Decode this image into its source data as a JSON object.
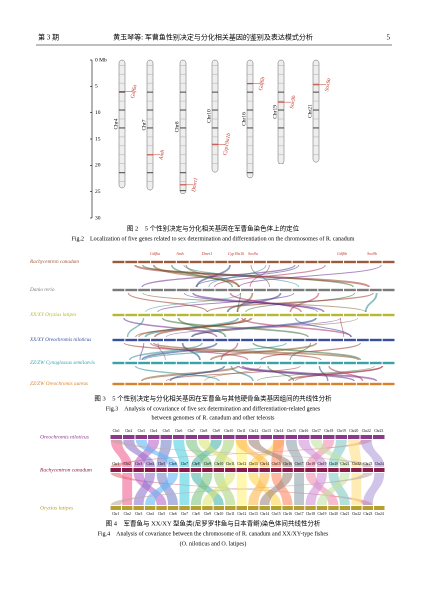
{
  "header": {
    "issue": "第 3 期",
    "running_title": "黄玉琴等: 军曹鱼性别决定与分化相关基因的鉴别及表达模式分析",
    "page": "5"
  },
  "figure2": {
    "scale_ticks": [
      {
        "value": 0,
        "label": "0 Mb"
      },
      5,
      10,
      15,
      20,
      25,
      30
    ],
    "chromosomes": [
      {
        "name": "Chr4",
        "length": 24.3,
        "genes": [
          {
            "name": "Gdf6a",
            "position": 6
          }
        ]
      },
      {
        "name": "Chr7",
        "length": 24.7,
        "genes": [
          {
            "name": "Amh",
            "position": 18
          }
        ]
      },
      {
        "name": "Chr8",
        "length": 25.4,
        "genes": [
          {
            "name": "Dmrt1",
            "position": 23.7
          }
        ]
      },
      {
        "name": "Chr10",
        "length": 21.3,
        "genes": [
          {
            "name": "Cyp19a1b",
            "position": 16
          }
        ]
      },
      {
        "name": "Chr16",
        "length": 22.4,
        "genes": [
          {
            "name": "Gdf6b",
            "position": 4.5
          }
        ]
      },
      {
        "name": "Chr19",
        "length": 19.7,
        "genes": [
          {
            "name": "Sox9b",
            "position": 8
          }
        ]
      },
      {
        "name": "Chr21",
        "length": 19.4,
        "genes": [
          {
            "name": "Sox9a",
            "position": 4.7
          }
        ]
      }
    ],
    "caption_cn": "图 2　5 个性别决定与分化相关基因在军曹鱼染色体上的定位",
    "caption_en": "Fig.2　Localization of five genes related to sex determination and differentiation on the chromosomes of R. canadum"
  },
  "figure3": {
    "genes": [
      "Gdf6a",
      "Amh",
      "Dmrt1",
      "Cyp19a1b",
      "Sox9a",
      "Gdf6b",
      "Sox9b"
    ],
    "rows": [
      {
        "label": "Rachycentron canadum",
        "color": "#9c5a3c"
      },
      {
        "label": "Danio rerio",
        "color": "#7a7a7a"
      },
      {
        "label": "XX/XY Oryzias latipes",
        "color": "#b5b832"
      },
      {
        "label": "XX/XY Oreochromis niloticus",
        "color": "#3a4f9c"
      },
      {
        "label": "ZZ/ZW Cynoglossus semilaevis",
        "color": "#3aa3a8"
      },
      {
        "label": "ZZ/ZW Oreochromis aureus",
        "color": "#d9822b"
      }
    ],
    "caption_cn": "图 3　5 个性别决定与分化相关基因在军曹鱼与其他硬骨鱼类基因组间的共线性分析",
    "caption_en": [
      "Fig.3　Analysis of covariance of five sex determination and differentiation-related genes",
      "between genomes of R. canadum and other teleosts"
    ]
  },
  "figure4": {
    "rows": [
      {
        "label": "Oreochromis niloticus",
        "color": "#8b3a8b",
        "chromosomes": [
          "Chr1",
          "Chr2",
          "Chr3",
          "Chr4",
          "Chr5",
          "Chr6",
          "Chr7",
          "Chr8",
          "Chr9",
          "Chr10",
          "Chr11",
          "Chr12",
          "Chr13",
          "Chr14",
          "Chr15",
          "Chr16",
          "Chr17",
          "Chr18",
          "Chr19",
          "Chr20",
          "Chr22",
          "Chr23"
        ]
      },
      {
        "label": "Rachycentron canadum",
        "color": "#8b1a4a",
        "chromosomes": [
          "Chr1",
          "Chr2",
          "Chr3",
          "Chr4",
          "Chr5",
          "Chr6",
          "Chr7",
          "Chr8",
          "Chr9",
          "Chr10",
          "Chr11",
          "Chr12",
          "Chr13",
          "Chr14",
          "Chr15",
          "Chr16",
          "Chr17",
          "Chr18",
          "Chr19",
          "Chr20",
          "Chr21",
          "Chr22",
          "Chr23",
          "Chr24"
        ]
      },
      {
        "label": "Oryzias latipes",
        "color": "#b5a032",
        "chromosomes": [
          "Chr1",
          "Chr2",
          "Chr3",
          "Chr4",
          "Chr5",
          "Chr6",
          "Chr7",
          "Chr8",
          "Chr9",
          "Chr10",
          "Chr11",
          "Chr12",
          "Chr13",
          "Chr14",
          "Chr15",
          "Chr16",
          "Chr17",
          "Chr18",
          "Chr19",
          "Chr20",
          "Chr21",
          "Chr22",
          "Chr23",
          "Chr24"
        ]
      }
    ],
    "caption_cn": "图 4　军曹鱼与 XX/XY 型鱼类(尼罗罗非鱼与日本青鳉)染色体间共线性分析",
    "caption_en": [
      "Fig.4　Analysis of covariance between the chromosome of R. canadum and XX/XY-type fishes",
      "(O. niloticus and O. latipes)"
    ]
  }
}
